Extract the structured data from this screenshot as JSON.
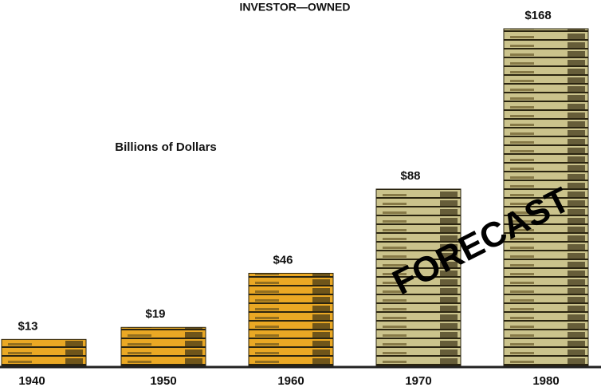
{
  "chart_data": {
    "type": "bar",
    "title": "INVESTOR—OWNED",
    "annotations": [
      "Billions of Dollars",
      "FORECAST"
    ],
    "categories": [
      "1940",
      "1950",
      "1960",
      "1970",
      "1980"
    ],
    "values": [
      13,
      19,
      46,
      88,
      168
    ],
    "value_labels": [
      "$13",
      "$19",
      "$46",
      "$88",
      "$168"
    ],
    "colors": [
      "#eaa824",
      "#eaa824",
      "#eaa824",
      "#cbc38c",
      "#cbc38c"
    ]
  }
}
